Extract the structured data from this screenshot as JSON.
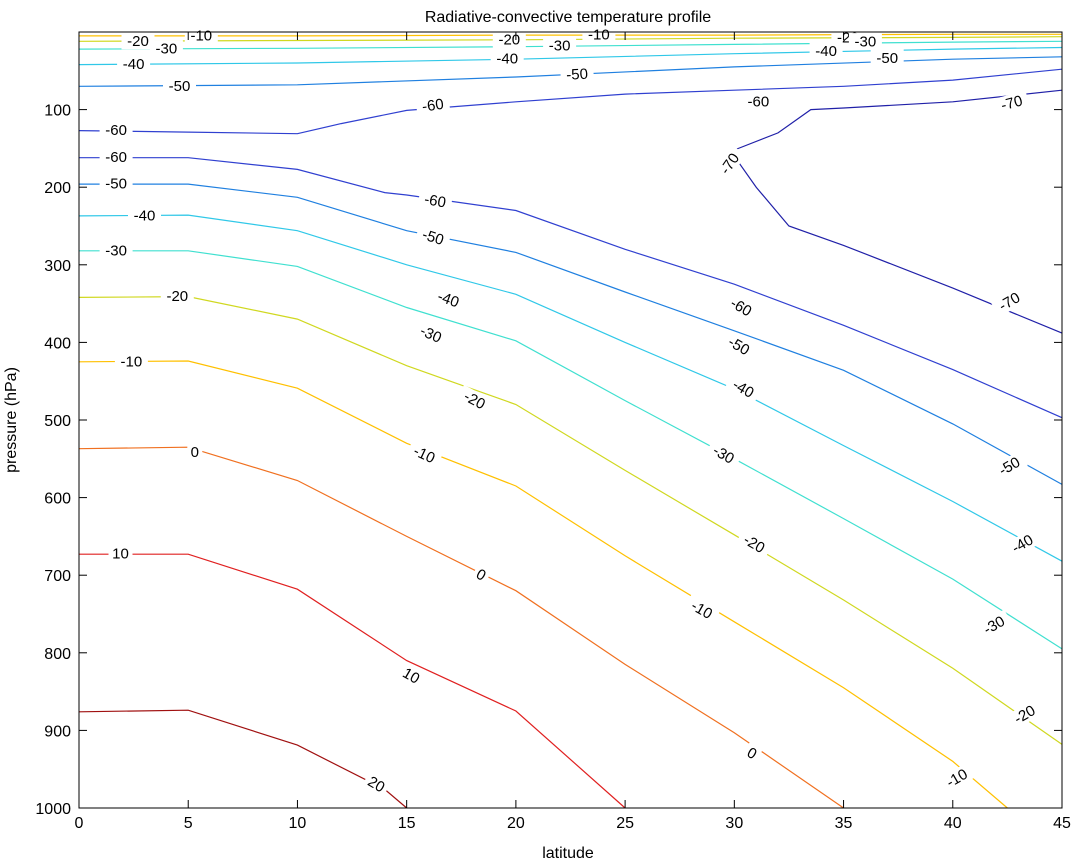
{
  "chart_data": {
    "type": "contour",
    "title": "Radiative-convective temperature profile",
    "xlabel": "latitude",
    "ylabel": "pressure (hPa)",
    "xlim": [
      0,
      45
    ],
    "ylim": [
      0,
      1000
    ],
    "y_inverted": true,
    "x_ticks": [
      "0",
      "5",
      "10",
      "15",
      "20",
      "25",
      "30",
      "35",
      "40",
      "45"
    ],
    "y_ticks": [
      "100",
      "200",
      "300",
      "400",
      "500",
      "600",
      "700",
      "800",
      "900",
      "1000"
    ],
    "grid": false,
    "colormap": "jet",
    "levels": [
      -70,
      -60,
      -50,
      -40,
      -30,
      -20,
      -10,
      0,
      10,
      20
    ],
    "contours": [
      {
        "level": 20,
        "color": "#a01010",
        "points": [
          [
            0,
            876
          ],
          [
            5,
            874
          ],
          [
            10,
            919
          ],
          [
            14,
            976
          ],
          [
            15,
            1000
          ]
        ]
      },
      {
        "level": 10,
        "color": "#e02020",
        "points": [
          [
            0,
            673
          ],
          [
            5,
            673
          ],
          [
            10,
            718
          ],
          [
            15,
            810
          ],
          [
            20,
            875
          ],
          [
            25,
            1000
          ]
        ]
      },
      {
        "level": 0,
        "color": "#f07020",
        "points": [
          [
            0,
            537
          ],
          [
            5,
            535
          ],
          [
            10,
            578
          ],
          [
            15,
            650
          ],
          [
            20,
            720
          ],
          [
            25,
            815
          ],
          [
            30,
            903
          ],
          [
            35,
            1000
          ]
        ]
      },
      {
        "level": -10,
        "color": "#ffc000",
        "points": [
          [
            0,
            425
          ],
          [
            5,
            424
          ],
          [
            10,
            459
          ],
          [
            15,
            530
          ],
          [
            20,
            585
          ],
          [
            25,
            675
          ],
          [
            30,
            760
          ],
          [
            35,
            845
          ],
          [
            40,
            940
          ],
          [
            42.5,
            1000
          ]
        ]
      },
      {
        "level": -20,
        "color": "#d0d820",
        "points": [
          [
            0,
            342
          ],
          [
            5,
            341
          ],
          [
            10,
            370
          ],
          [
            15,
            430
          ],
          [
            20,
            480
          ],
          [
            25,
            565
          ],
          [
            30,
            648
          ],
          [
            35,
            732
          ],
          [
            40,
            820
          ],
          [
            45,
            918
          ]
        ]
      },
      {
        "level": -30,
        "color": "#40e0d0",
        "points": [
          [
            0,
            282
          ],
          [
            5,
            282
          ],
          [
            10,
            302
          ],
          [
            15,
            355
          ],
          [
            20,
            398
          ],
          [
            25,
            475
          ],
          [
            30,
            550
          ],
          [
            35,
            627
          ],
          [
            40,
            705
          ],
          [
            45,
            795
          ]
        ]
      },
      {
        "level": -40,
        "color": "#30c8e8",
        "points": [
          [
            0,
            237
          ],
          [
            5,
            236
          ],
          [
            10,
            256
          ],
          [
            15,
            300
          ],
          [
            20,
            338
          ],
          [
            25,
            400
          ],
          [
            30,
            460
          ],
          [
            35,
            533
          ],
          [
            40,
            605
          ],
          [
            45,
            682
          ]
        ]
      },
      {
        "level": -50,
        "color": "#2080e0",
        "points": [
          [
            0,
            196
          ],
          [
            5,
            196
          ],
          [
            10,
            213
          ],
          [
            15,
            256
          ],
          [
            20,
            284
          ],
          [
            25,
            335
          ],
          [
            30,
            385
          ],
          [
            35,
            436
          ],
          [
            40,
            505
          ],
          [
            45,
            583
          ]
        ]
      },
      {
        "level": -60,
        "color": "#3040d0",
        "points": [
          [
            0,
            162
          ],
          [
            5,
            162
          ],
          [
            10,
            177
          ],
          [
            14,
            207
          ],
          [
            15,
            210
          ],
          [
            20,
            230
          ],
          [
            25,
            280
          ],
          [
            30,
            325
          ],
          [
            35,
            378
          ],
          [
            40,
            435
          ],
          [
            45,
            497
          ]
        ]
      },
      {
        "level": -60,
        "color": "#3040d0",
        "points": [
          [
            0,
            127
          ],
          [
            5,
            129
          ],
          [
            10,
            131
          ],
          [
            12,
            118
          ],
          [
            15,
            101
          ],
          [
            20,
            90
          ],
          [
            25,
            80
          ],
          [
            30,
            75
          ],
          [
            35,
            70
          ],
          [
            40,
            62
          ],
          [
            45,
            48
          ]
        ]
      },
      {
        "level": -70,
        "color": "#2020a8",
        "points": [
          [
            30,
            152
          ],
          [
            32,
            130
          ],
          [
            33.5,
            100
          ],
          [
            35,
            98
          ],
          [
            40,
            90
          ],
          [
            45,
            75
          ]
        ]
      },
      {
        "level": -70,
        "color": "#2020a8",
        "points": [
          [
            30,
            160
          ],
          [
            31,
            200
          ],
          [
            32.5,
            250
          ],
          [
            35,
            275
          ],
          [
            40,
            330
          ],
          [
            45,
            388
          ]
        ]
      },
      {
        "level": -50,
        "color": "#2080e0",
        "points": [
          [
            0,
            70
          ],
          [
            10,
            68
          ],
          [
            20,
            58
          ],
          [
            30,
            45
          ],
          [
            40,
            35
          ],
          [
            45,
            32
          ]
        ]
      },
      {
        "level": -40,
        "color": "#30c8e8",
        "points": [
          [
            0,
            42
          ],
          [
            10,
            40
          ],
          [
            20,
            35
          ],
          [
            30,
            28
          ],
          [
            40,
            22
          ],
          [
            45,
            20
          ]
        ]
      },
      {
        "level": -30,
        "color": "#40e0d0",
        "points": [
          [
            0,
            22
          ],
          [
            10,
            21
          ],
          [
            20,
            19
          ],
          [
            30,
            16
          ],
          [
            40,
            13
          ],
          [
            45,
            12
          ]
        ]
      },
      {
        "level": -20,
        "color": "#d0d820",
        "points": [
          [
            0,
            12
          ],
          [
            10,
            11
          ],
          [
            20,
            10
          ],
          [
            30,
            8
          ],
          [
            40,
            7
          ],
          [
            45,
            6
          ]
        ]
      },
      {
        "level": -10,
        "color": "#ffc000",
        "points": [
          [
            0,
            5
          ],
          [
            10,
            5
          ],
          [
            20,
            4
          ],
          [
            30,
            4
          ],
          [
            40,
            3
          ],
          [
            45,
            3
          ]
        ]
      }
    ],
    "contour_labels": [
      {
        "text": "-20",
        "x": 2.7,
        "y": 12,
        "angle": 0
      },
      {
        "text": "-10",
        "x": 5.6,
        "y": 5,
        "angle": 0
      },
      {
        "text": "-30",
        "x": 4.0,
        "y": 22,
        "angle": 0
      },
      {
        "text": "-40",
        "x": 2.5,
        "y": 42,
        "angle": 0
      },
      {
        "text": "-50",
        "x": 4.6,
        "y": 70,
        "angle": 0
      },
      {
        "text": "-20",
        "x": 19.7,
        "y": 10,
        "angle": 0
      },
      {
        "text": "-10",
        "x": 23.8,
        "y": 4,
        "angle": 0
      },
      {
        "text": "-30",
        "x": 22.0,
        "y": 18,
        "angle": 0
      },
      {
        "text": "-40",
        "x": 19.6,
        "y": 35,
        "angle": 0
      },
      {
        "text": "-50",
        "x": 22.8,
        "y": 55,
        "angle": -3
      },
      {
        "text": "-20",
        "x": 35.2,
        "y": 8,
        "angle": 0
      },
      {
        "text": "-30",
        "x": 36.0,
        "y": 13,
        "angle": 0
      },
      {
        "text": "-40",
        "x": 34.2,
        "y": 25,
        "angle": 0
      },
      {
        "text": "-50",
        "x": 37.0,
        "y": 34,
        "angle": 0
      },
      {
        "text": "-60",
        "x": 1.7,
        "y": 127,
        "angle": 0
      },
      {
        "text": "-60",
        "x": 1.7,
        "y": 162,
        "angle": 0
      },
      {
        "text": "-50",
        "x": 1.7,
        "y": 196,
        "angle": 0
      },
      {
        "text": "-40",
        "x": 3.0,
        "y": 237,
        "angle": 0
      },
      {
        "text": "-30",
        "x": 1.7,
        "y": 282,
        "angle": 0
      },
      {
        "text": "-20",
        "x": 4.5,
        "y": 341,
        "angle": 0
      },
      {
        "text": "-10",
        "x": 2.4,
        "y": 425,
        "angle": 0
      },
      {
        "text": "0",
        "x": 5.3,
        "y": 542,
        "angle": 0
      },
      {
        "text": "10",
        "x": 1.9,
        "y": 673,
        "angle": 0
      },
      {
        "text": "-60",
        "x": 16.2,
        "y": 95,
        "angle": -8
      },
      {
        "text": "-60",
        "x": 16.3,
        "y": 218,
        "angle": 10
      },
      {
        "text": "-50",
        "x": 16.2,
        "y": 265,
        "angle": 18
      },
      {
        "text": "-40",
        "x": 16.9,
        "y": 345,
        "angle": 20
      },
      {
        "text": "-30",
        "x": 16.1,
        "y": 390,
        "angle": 24
      },
      {
        "text": "-20",
        "x": 18.1,
        "y": 475,
        "angle": 28
      },
      {
        "text": "-10",
        "x": 15.8,
        "y": 545,
        "angle": 25
      },
      {
        "text": "0",
        "x": 18.4,
        "y": 700,
        "angle": 30
      },
      {
        "text": "10",
        "x": 15.2,
        "y": 830,
        "angle": 30
      },
      {
        "text": "20",
        "x": 13.6,
        "y": 970,
        "angle": 30
      },
      {
        "text": "-60",
        "x": 31.1,
        "y": 90,
        "angle": 0
      },
      {
        "text": "-70",
        "x": 29.8,
        "y": 170,
        "angle": -55
      },
      {
        "text": "-60",
        "x": 30.3,
        "y": 355,
        "angle": 30
      },
      {
        "text": "-50",
        "x": 30.2,
        "y": 405,
        "angle": 30
      },
      {
        "text": "-40",
        "x": 30.4,
        "y": 460,
        "angle": 30
      },
      {
        "text": "-30",
        "x": 29.5,
        "y": 545,
        "angle": 30
      },
      {
        "text": "-20",
        "x": 30.9,
        "y": 660,
        "angle": 30
      },
      {
        "text": "-10",
        "x": 28.5,
        "y": 745,
        "angle": 30
      },
      {
        "text": "0",
        "x": 30.8,
        "y": 930,
        "angle": 30
      },
      {
        "text": "-70",
        "x": 42.7,
        "y": 92,
        "angle": -15
      },
      {
        "text": "-70",
        "x": 42.6,
        "y": 348,
        "angle": -30
      },
      {
        "text": "-50",
        "x": 42.6,
        "y": 560,
        "angle": -30
      },
      {
        "text": "-40",
        "x": 43.2,
        "y": 660,
        "angle": -30
      },
      {
        "text": "-30",
        "x": 41.9,
        "y": 765,
        "angle": -30
      },
      {
        "text": "-20",
        "x": 43.3,
        "y": 880,
        "angle": -30
      },
      {
        "text": "-10",
        "x": 40.2,
        "y": 962,
        "angle": -30
      }
    ]
  }
}
